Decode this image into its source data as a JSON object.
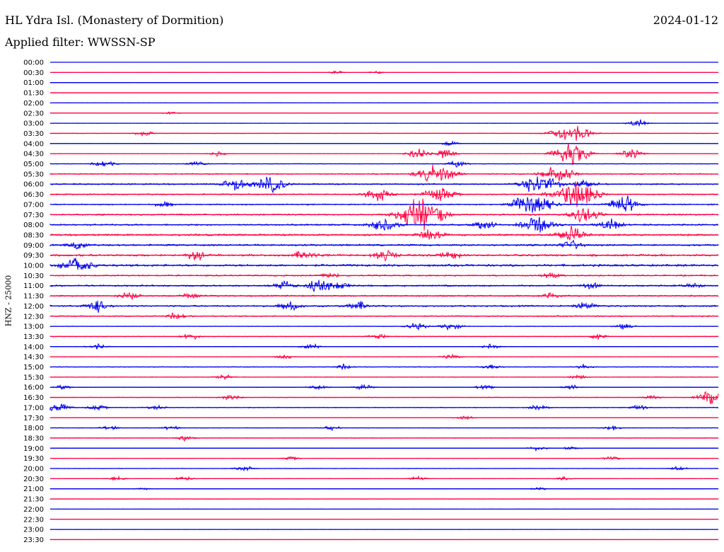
{
  "header": {
    "station": "HL Ydra Isl. (Monastery of Dormition)",
    "date": "2024-01-12",
    "filter": "Applied filter: WWSSN-SP"
  },
  "chart_data": {
    "type": "line",
    "title": "HL Ydra Isl. (Monastery of Dormition)",
    "subtitle": "Applied filter: WWSSN-SP",
    "ylabel": "HNZ - 25000",
    "xlabel": "",
    "colors": [
      "#0000ee",
      "#ff0040"
    ],
    "grid": false,
    "rows": [
      {
        "label": "00:00",
        "activity": 0.0,
        "events": []
      },
      {
        "label": "00:30",
        "activity": 0.05,
        "events": [
          [
            0.43,
            0.3
          ],
          [
            0.49,
            0.3
          ]
        ]
      },
      {
        "label": "01:00",
        "activity": 0.05,
        "events": []
      },
      {
        "label": "01:30",
        "activity": 0.0,
        "events": []
      },
      {
        "label": "02:00",
        "activity": 0.05,
        "events": []
      },
      {
        "label": "02:30",
        "activity": 0.08,
        "events": [
          [
            0.18,
            0.4
          ]
        ]
      },
      {
        "label": "03:00",
        "activity": 0.06,
        "events": [
          [
            0.88,
            0.8
          ]
        ]
      },
      {
        "label": "03:30",
        "activity": 0.1,
        "events": [
          [
            0.14,
            0.6
          ],
          [
            0.75,
            0.4
          ],
          [
            0.81,
            0.4
          ],
          [
            0.78,
            2.0
          ]
        ]
      },
      {
        "label": "04:00",
        "activity": 0.1,
        "events": [
          [
            0.6,
            0.5
          ]
        ]
      },
      {
        "label": "04:30",
        "activity": 0.12,
        "events": [
          [
            0.25,
            0.5
          ],
          [
            0.55,
            1.0
          ],
          [
            0.59,
            1.0
          ],
          [
            0.87,
            1.0
          ],
          [
            0.78,
            2.5
          ]
        ]
      },
      {
        "label": "05:00",
        "activity": 0.15,
        "events": [
          [
            0.08,
            0.9
          ],
          [
            0.22,
            0.6
          ],
          [
            0.61,
            0.7
          ]
        ]
      },
      {
        "label": "05:30",
        "activity": 0.3,
        "events": [
          [
            0.57,
            1.8
          ],
          [
            0.6,
            1.0
          ],
          [
            0.76,
            2.0
          ]
        ]
      },
      {
        "label": "06:00",
        "activity": 0.35,
        "events": [
          [
            0.28,
            1.5
          ],
          [
            0.33,
            1.8
          ],
          [
            0.72,
            1.8
          ],
          [
            0.75,
            1.2
          ],
          [
            0.8,
            1.0
          ]
        ]
      },
      {
        "label": "06:30",
        "activity": 0.3,
        "events": [
          [
            0.49,
            1.4
          ],
          [
            0.57,
            0.8
          ],
          [
            0.59,
            1.2
          ],
          [
            0.78,
            3.0
          ],
          [
            0.81,
            1.2
          ]
        ]
      },
      {
        "label": "07:00",
        "activity": 0.3,
        "events": [
          [
            0.17,
            0.6
          ],
          [
            0.71,
            1.8
          ],
          [
            0.74,
            1.6
          ],
          [
            0.86,
            1.8
          ]
        ]
      },
      {
        "label": "07:30",
        "activity": 0.4,
        "events": [
          [
            0.55,
            3.2
          ],
          [
            0.58,
            1.2
          ],
          [
            0.8,
            1.8
          ]
        ]
      },
      {
        "label": "08:00",
        "activity": 0.4,
        "events": [
          [
            0.5,
            1.6
          ],
          [
            0.65,
            1.0
          ],
          [
            0.73,
            2.0
          ],
          [
            0.84,
            1.2
          ]
        ]
      },
      {
        "label": "08:30",
        "activity": 0.45,
        "events": [
          [
            0.57,
            1.4
          ],
          [
            0.78,
            1.8
          ]
        ]
      },
      {
        "label": "09:00",
        "activity": 0.45,
        "events": [
          [
            0.04,
            0.8
          ],
          [
            0.78,
            1.0
          ]
        ]
      },
      {
        "label": "09:30",
        "activity": 0.5,
        "events": [
          [
            0.22,
            1.0
          ],
          [
            0.38,
            1.0
          ],
          [
            0.5,
            1.2
          ],
          [
            0.6,
            0.8
          ]
        ]
      },
      {
        "label": "10:00",
        "activity": 0.55,
        "events": [
          [
            0.03,
            1.2
          ],
          [
            0.05,
            1.0
          ]
        ]
      },
      {
        "label": "10:30",
        "activity": 0.35,
        "events": [
          [
            0.42,
            0.6
          ],
          [
            0.75,
            0.6
          ]
        ]
      },
      {
        "label": "11:00",
        "activity": 0.4,
        "events": [
          [
            0.35,
            1.0
          ],
          [
            0.4,
            1.2
          ],
          [
            0.43,
            1.0
          ],
          [
            0.81,
            0.6
          ],
          [
            0.96,
            0.6
          ]
        ]
      },
      {
        "label": "11:30",
        "activity": 0.35,
        "events": [
          [
            0.12,
            0.8
          ],
          [
            0.21,
            0.6
          ],
          [
            0.75,
            0.6
          ]
        ]
      },
      {
        "label": "12:00",
        "activity": 0.4,
        "events": [
          [
            0.07,
            1.2
          ],
          [
            0.36,
            1.0
          ],
          [
            0.46,
            1.0
          ],
          [
            0.8,
            0.8
          ]
        ]
      },
      {
        "label": "12:30",
        "activity": 0.3,
        "events": [
          [
            0.19,
            0.8
          ]
        ]
      },
      {
        "label": "13:00",
        "activity": 0.15,
        "events": [
          [
            0.55,
            0.9
          ],
          [
            0.6,
            0.9
          ],
          [
            0.86,
            0.6
          ]
        ]
      },
      {
        "label": "13:30",
        "activity": 0.15,
        "events": [
          [
            0.21,
            0.7
          ],
          [
            0.49,
            0.6
          ],
          [
            0.82,
            0.6
          ]
        ]
      },
      {
        "label": "14:00",
        "activity": 0.12,
        "events": [
          [
            0.07,
            0.6
          ],
          [
            0.39,
            0.6
          ],
          [
            0.66,
            0.6
          ]
        ]
      },
      {
        "label": "14:30",
        "activity": 0.12,
        "events": [
          [
            0.35,
            0.5
          ],
          [
            0.6,
            0.6
          ]
        ]
      },
      {
        "label": "15:00",
        "activity": 0.18,
        "events": [
          [
            0.44,
            0.6
          ],
          [
            0.66,
            0.6
          ],
          [
            0.8,
            0.5
          ]
        ]
      },
      {
        "label": "15:30",
        "activity": 0.15,
        "events": [
          [
            0.26,
            0.5
          ],
          [
            0.79,
            0.5
          ]
        ]
      },
      {
        "label": "16:00",
        "activity": 0.12,
        "events": [
          [
            0.02,
            0.5
          ],
          [
            0.4,
            0.6
          ],
          [
            0.47,
            0.6
          ],
          [
            0.65,
            0.5
          ],
          [
            0.78,
            0.5
          ]
        ]
      },
      {
        "label": "16:30",
        "activity": 0.15,
        "events": [
          [
            0.27,
            0.7
          ],
          [
            0.99,
            1.6
          ],
          [
            0.9,
            0.5
          ]
        ]
      },
      {
        "label": "17:00",
        "activity": 0.2,
        "events": [
          [
            0.01,
            1.2
          ],
          [
            0.07,
            0.6
          ],
          [
            0.16,
            0.5
          ],
          [
            0.73,
            0.6
          ],
          [
            0.88,
            0.5
          ]
        ]
      },
      {
        "label": "17:30",
        "activity": 0.12,
        "events": [
          [
            0.62,
            0.5
          ]
        ]
      },
      {
        "label": "18:00",
        "activity": 0.12,
        "events": [
          [
            0.09,
            0.5
          ],
          [
            0.18,
            0.5
          ],
          [
            0.42,
            0.5
          ],
          [
            0.84,
            0.5
          ]
        ]
      },
      {
        "label": "18:30",
        "activity": 0.12,
        "events": [
          [
            0.2,
            0.6
          ]
        ]
      },
      {
        "label": "19:00",
        "activity": 0.08,
        "events": [
          [
            0.73,
            0.5
          ],
          [
            0.78,
            0.4
          ]
        ]
      },
      {
        "label": "19:30",
        "activity": 0.08,
        "events": [
          [
            0.36,
            0.4
          ],
          [
            0.84,
            0.5
          ]
        ]
      },
      {
        "label": "20:00",
        "activity": 0.1,
        "events": [
          [
            0.29,
            0.7
          ],
          [
            0.94,
            0.5
          ]
        ]
      },
      {
        "label": "20:30",
        "activity": 0.08,
        "events": [
          [
            0.1,
            0.5
          ],
          [
            0.2,
            0.6
          ],
          [
            0.55,
            0.5
          ],
          [
            0.77,
            0.5
          ]
        ]
      },
      {
        "label": "21:00",
        "activity": 0.06,
        "events": [
          [
            0.14,
            0.3
          ],
          [
            0.73,
            0.3
          ]
        ]
      },
      {
        "label": "21:30",
        "activity": 0.06,
        "events": []
      },
      {
        "label": "22:00",
        "activity": 0.04,
        "events": []
      },
      {
        "label": "22:30",
        "activity": 0.04,
        "events": []
      },
      {
        "label": "23:00",
        "activity": 0.06,
        "events": []
      },
      {
        "label": "23:30",
        "activity": 0.02,
        "events": []
      }
    ]
  }
}
